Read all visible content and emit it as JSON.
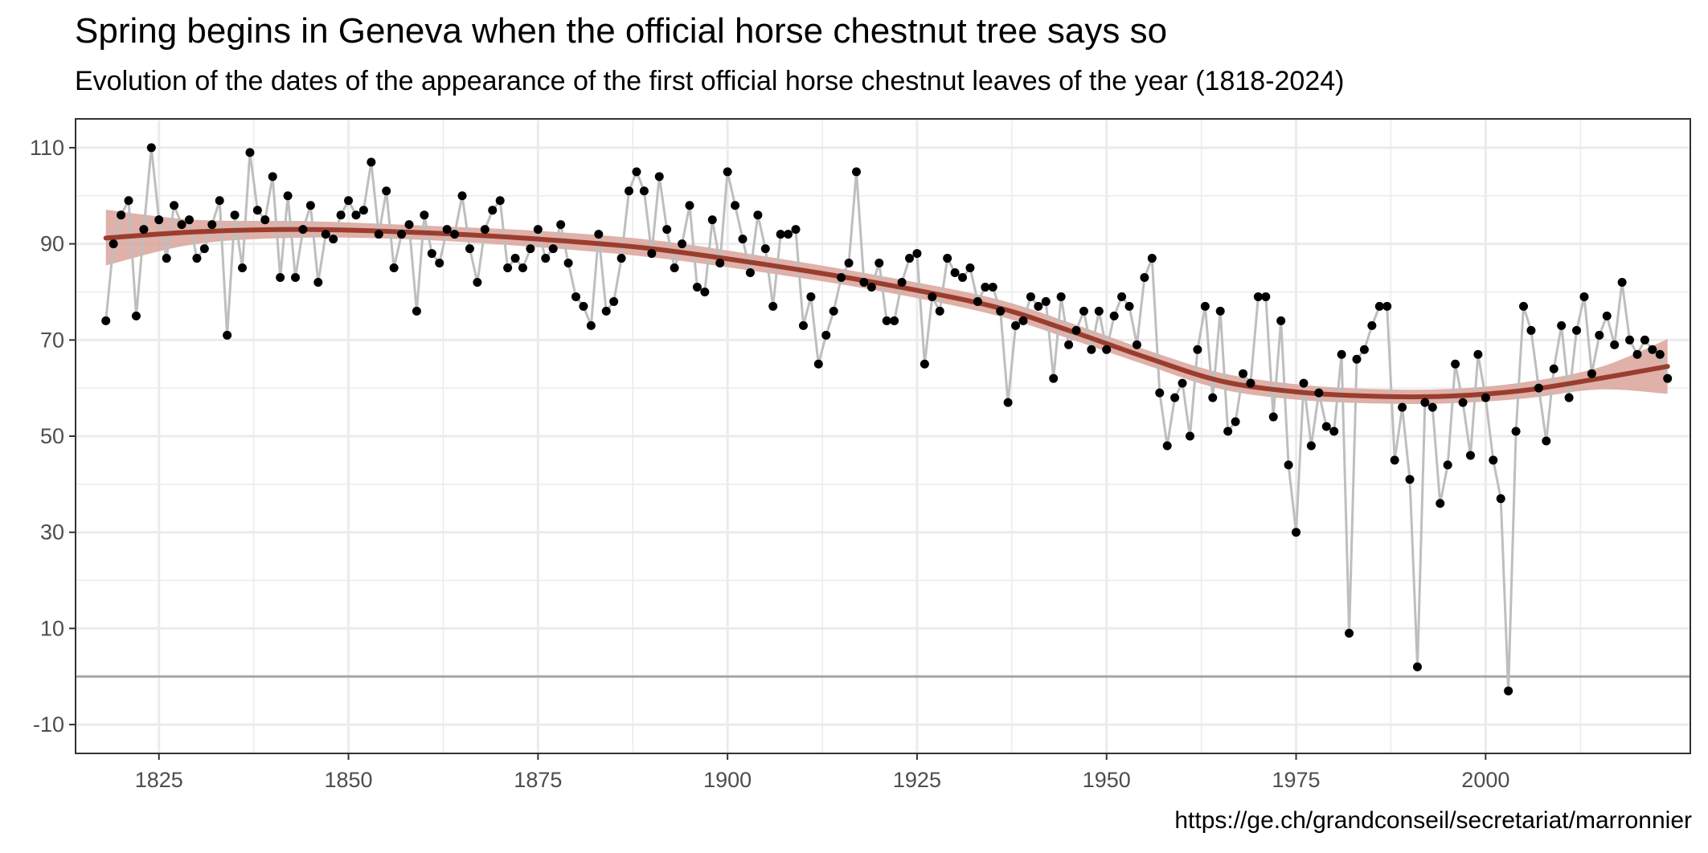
{
  "title": "Spring begins in Geneva when the official horse chestnut tree says so",
  "subtitle": "Evolution of the dates of the appearance of the first official horse chestnut leaves of the year (1818-2024)",
  "caption": "https://ge.ch/grandconseil/secretariat/marronnier",
  "colors": {
    "line": "#bebebe",
    "point": "#000000",
    "trend": "#9b3d2e",
    "band": "#d9a39a",
    "zero_line": "#a6a6a6",
    "grid": "#ebebeb",
    "border": "#333333"
  },
  "chart_data": {
    "type": "line",
    "title": "Spring begins in Geneva when the official horse chestnut tree says so",
    "subtitle": "Evolution of the dates of the appearance of the first official horse chestnut leaves of the year (1818-2024)",
    "xlabel": "",
    "ylabel": "",
    "xlim": [
      1814,
      2027
    ],
    "ylim": [
      -16,
      116
    ],
    "x_ticks": [
      1825,
      1850,
      1875,
      1900,
      1925,
      1950,
      1975,
      2000
    ],
    "y_ticks": [
      110,
      90,
      70,
      50,
      30,
      10,
      -10
    ],
    "hline": 0,
    "grid": true,
    "legend": "none",
    "series": [
      {
        "x": [
          1818,
          1819,
          1820,
          1821,
          1822,
          1823,
          1824,
          1825,
          1826,
          1827,
          1828,
          1829,
          1830,
          1831,
          1832,
          1833,
          1834,
          1835,
          1836,
          1837,
          1838,
          1839,
          1840,
          1841,
          1842,
          1843,
          1844,
          1845,
          1846,
          1847,
          1848,
          1849,
          1850,
          1851,
          1852,
          1853,
          1854,
          1855,
          1856,
          1857,
          1858,
          1859,
          1860,
          1861,
          1862,
          1863,
          1864,
          1865,
          1866,
          1867,
          1868,
          1869,
          1870,
          1871,
          1872,
          1873,
          1874,
          1875,
          1876,
          1877,
          1878,
          1879,
          1880,
          1881,
          1882,
          1883,
          1884,
          1885,
          1886,
          1887,
          1888,
          1889,
          1890,
          1891,
          1892,
          1893,
          1894,
          1895,
          1896,
          1897,
          1898,
          1899,
          1900,
          1901,
          1902,
          1903,
          1904,
          1905,
          1906,
          1907,
          1908,
          1909,
          1910,
          1911,
          1912,
          1913,
          1914,
          1915,
          1916,
          1917,
          1918,
          1919,
          1920,
          1921,
          1922,
          1923,
          1924,
          1925,
          1926,
          1927,
          1928,
          1929,
          1930,
          1931,
          1932,
          1933,
          1934,
          1935,
          1936,
          1937,
          1938,
          1939,
          1940,
          1941,
          1942,
          1943,
          1944,
          1945,
          1946,
          1947,
          1948,
          1949,
          1950,
          1951,
          1952,
          1953,
          1954,
          1955,
          1956,
          1957,
          1958,
          1959,
          1960,
          1961,
          1962,
          1963,
          1964,
          1965,
          1966,
          1967,
          1968,
          1969,
          1970,
          1971,
          1972,
          1973,
          1974,
          1975,
          1976,
          1977,
          1978,
          1979,
          1980,
          1981,
          1982,
          1983,
          1984,
          1985,
          1986,
          1987,
          1988,
          1989,
          1990,
          1991,
          1992,
          1993,
          1994,
          1995,
          1996,
          1997,
          1998,
          1999,
          2000,
          2001,
          2002,
          2003,
          2004,
          2005,
          2006,
          2007,
          2008,
          2009,
          2010,
          2011,
          2012,
          2013,
          2014,
          2015,
          2016,
          2017,
          2018,
          2019,
          2020,
          2021,
          2022,
          2023,
          2024
        ],
        "y": [
          74,
          90,
          96,
          99,
          75,
          93,
          110,
          95,
          87,
          98,
          94,
          95,
          87,
          89,
          94,
          99,
          71,
          96,
          85,
          109,
          97,
          95,
          104,
          83,
          100,
          83,
          93,
          98,
          82,
          92,
          91,
          96,
          99,
          96,
          97,
          107,
          92,
          101,
          85,
          92,
          94,
          76,
          96,
          88,
          86,
          93,
          92,
          100,
          89,
          82,
          93,
          97,
          99,
          85,
          87,
          85,
          89,
          93,
          87,
          89,
          94,
          86,
          79,
          77,
          73,
          92,
          76,
          78,
          87,
          101,
          105,
          101,
          88,
          104,
          93,
          85,
          90,
          98,
          81,
          80,
          95,
          86,
          105,
          98,
          91,
          84,
          96,
          89,
          77,
          92,
          92,
          93,
          73,
          79,
          65,
          71,
          76,
          83,
          86,
          105,
          82,
          81,
          86,
          74,
          74,
          82,
          87,
          88,
          65,
          79,
          76,
          87,
          84,
          83,
          85,
          78,
          81,
          81,
          76,
          57,
          73,
          74,
          79,
          77,
          78,
          62,
          79,
          69,
          72,
          76,
          68,
          76,
          68,
          75,
          79,
          77,
          69,
          83,
          87,
          59,
          48,
          58,
          61,
          50,
          68,
          77,
          58,
          76,
          51,
          53,
          63,
          61,
          79,
          79,
          54,
          74,
          44,
          30,
          61,
          48,
          59,
          52,
          51,
          67,
          9,
          66,
          68,
          73,
          77,
          77,
          45,
          56,
          41,
          2,
          57,
          56,
          36,
          44,
          65,
          57,
          46,
          67,
          58,
          45,
          37,
          -3,
          51,
          77,
          72,
          60,
          49,
          64,
          73,
          58,
          72,
          79,
          63,
          71,
          75,
          69,
          82,
          70,
          67,
          70,
          68,
          67,
          62
        ]
      }
    ],
    "trend": {
      "x": [
        1818,
        1830,
        1845,
        1860,
        1875,
        1890,
        1905,
        1920,
        1935,
        1945,
        1955,
        1965,
        1975,
        1985,
        1995,
        2005,
        2015,
        2024
      ],
      "y": [
        91.2,
        92.5,
        93,
        92.3,
        91,
        89,
        85.7,
        81.8,
        77,
        72,
        66.5,
        61.5,
        59.2,
        58.3,
        58.3,
        59.5,
        62,
        64.5
      ],
      "ci_low": [
        85.5,
        90,
        91.3,
        90.8,
        89.3,
        87.2,
        84,
        80.2,
        75.3,
        70.3,
        64.9,
        59.8,
        57.6,
        56.8,
        56.8,
        57.8,
        59.7,
        58.8
      ],
      "ci_high": [
        97.1,
        95,
        94.7,
        93.8,
        92.7,
        90.8,
        87.4,
        83.4,
        78.7,
        73.7,
        68.1,
        63.2,
        60.8,
        59.8,
        59.8,
        61.2,
        64.3,
        70.2
      ]
    }
  }
}
